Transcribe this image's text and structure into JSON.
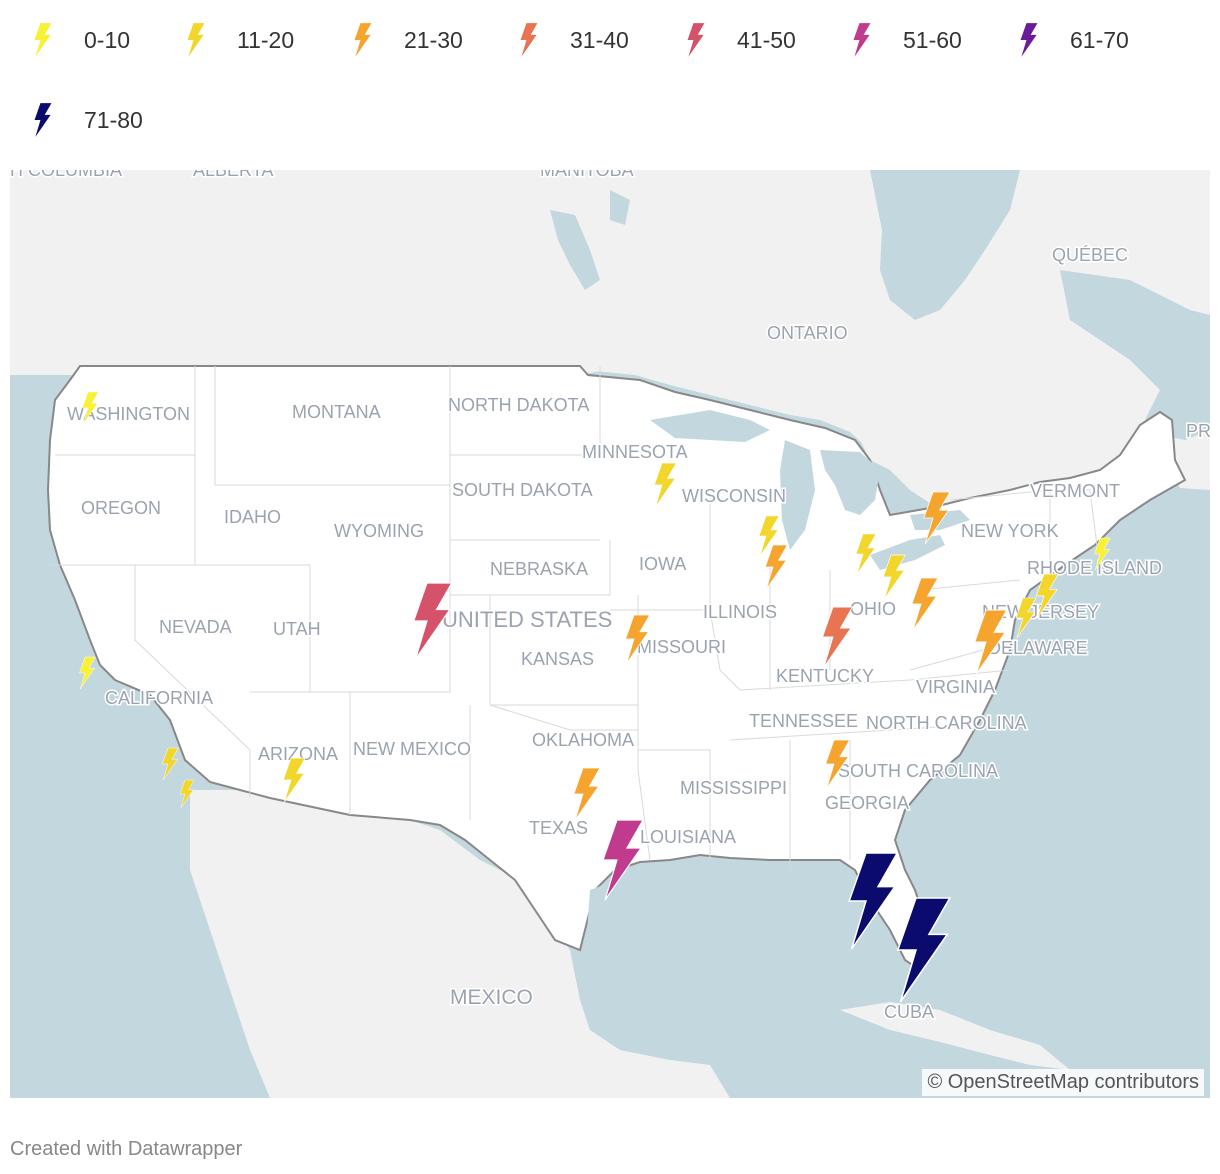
{
  "legend": [
    {
      "label": "0-10",
      "color": "#f8f135"
    },
    {
      "label": "11-20",
      "color": "#f2d62c"
    },
    {
      "label": "21-30",
      "color": "#f5a52e"
    },
    {
      "label": "31-40",
      "color": "#e97451"
    },
    {
      "label": "41-50",
      "color": "#d4536a"
    },
    {
      "label": "51-60",
      "color": "#c03b8e"
    },
    {
      "label": "61-70",
      "color": "#6a1b9a"
    },
    {
      "label": "71-80",
      "color": "#0b0b6e"
    }
  ],
  "map_labels": {
    "british_columbia": "H COLUMBIA",
    "alberta": "ALBERTA",
    "manitoba": "MANITOBA",
    "quebec": "QUÉBEC",
    "ontario": "ONTARIO",
    "pr": "PR",
    "washington": "WASHINGTON",
    "montana": "MONTANA",
    "north_dakota": "NORTH DAKOTA",
    "minnesota": "MINNESOTA",
    "wisconsin": "WISCONSIN",
    "south_dakota": "SOUTH DAKOTA",
    "oregon": "OREGON",
    "idaho": "IDAHO",
    "wyoming": "WYOMING",
    "vermont": "VERMONT",
    "new_york": "NEW YORK",
    "rhode_island": "RHODE ISLAND",
    "nebraska": "NEBRASKA",
    "iowa": "IOWA",
    "nevada": "NEVADA",
    "utah": "UTAH",
    "united_states": "UNITED STATES",
    "illinois": "ILLINOIS",
    "ohio": "OHIO",
    "new_jersey": "NEW JERSEY",
    "kansas": "KANSAS",
    "missouri": "MISSOURI",
    "delaware": "DELAWARE",
    "california": "CALIFORNIA",
    "kentucky": "KENTUCKY",
    "virginia": "VIRGINIA",
    "tennessee": "TENNESSEE",
    "north_carolina": "NORTH CAROLINA",
    "oklahoma": "OKLAHOMA",
    "arizona": "ARIZONA",
    "new_mexico": "NEW MEXICO",
    "mississippi": "MISSISSIPPI",
    "south_carolina": "SOUTH CAROLINA",
    "georgia": "GEORGIA",
    "texas": "TEXAS",
    "louisiana": "LOUISIANA",
    "mexico": "MEXICO",
    "cuba": "CUBA"
  },
  "markers_icon": "lightning-bolt-icon",
  "colors": {
    "water": "#c3d7df",
    "land_us": "#ffffff",
    "land_other": "#f1f1f1",
    "border": "#888888"
  },
  "attribution": "© OpenStreetMap contributors",
  "footer": "Created with Datawrapper"
}
